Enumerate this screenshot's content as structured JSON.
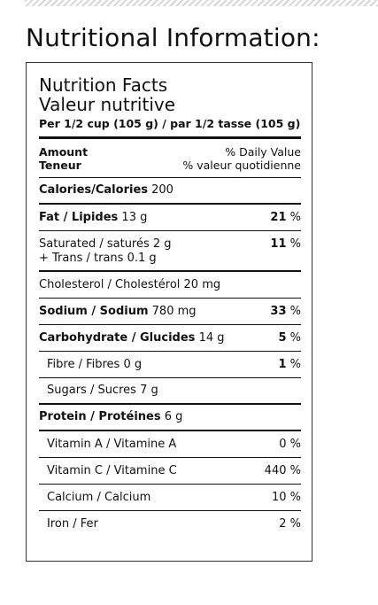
{
  "page_title": "Nutritional Information:",
  "facts": {
    "title_en": "Nutrition Facts",
    "title_fr": "Valeur nutritive",
    "serving": "Per 1/2 cup (105 g) / par 1/2 tasse (105 g)",
    "header": {
      "amount_en": "Amount",
      "amount_fr": "Teneur",
      "dv_en": "% Daily Value",
      "dv_fr": "% valeur quotidienne"
    },
    "calories": {
      "label": "Calories/Calories",
      "value": "200"
    },
    "fat": {
      "label": "Fat / Lipides",
      "amount": "13 g",
      "pct": "21",
      "unit": "%"
    },
    "saturated": {
      "label": "Saturated / saturés",
      "amount": "2 g",
      "pct": "11",
      "unit": "%"
    },
    "trans": {
      "label": "+ Trans / trans",
      "amount": "0.1 g"
    },
    "cholesterol": {
      "label": "Cholesterol / Cholestérol",
      "amount": "20 mg"
    },
    "sodium": {
      "label": "Sodium / Sodium",
      "amount": "780 mg",
      "pct": "33",
      "unit": "%"
    },
    "carbohydrate": {
      "label": "Carbohydrate / Glucides",
      "amount": "14 g",
      "pct": "5",
      "unit": "%"
    },
    "fibre": {
      "label": "Fibre / Fibres",
      "amount": "0 g",
      "pct": "1",
      "unit": "%"
    },
    "sugars": {
      "label": "Sugars / Sucres",
      "amount": "7 g"
    },
    "protein": {
      "label": "Protein / Protéines",
      "amount": "6 g"
    },
    "vitamin_a": {
      "label": "Vitamin A / Vitamine A",
      "pct": "0",
      "unit": "%"
    },
    "vitamin_c": {
      "label": "Vitamin C / Vitamine C",
      "pct": "440",
      "unit": "%"
    },
    "calcium": {
      "label": "Calcium / Calcium",
      "pct": "10",
      "unit": "%"
    },
    "iron": {
      "label": "Iron / Fer",
      "pct": "2",
      "unit": "%"
    }
  }
}
